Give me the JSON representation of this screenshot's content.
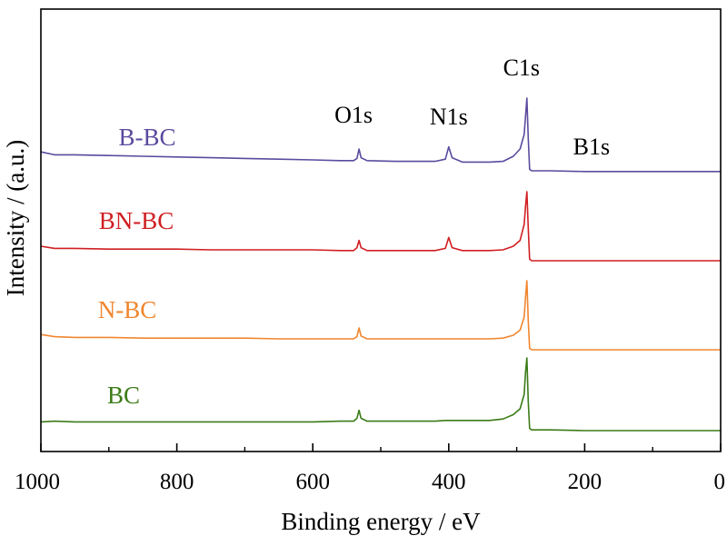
{
  "chart_data": {
    "type": "line",
    "xlabel": "Binding energy / eV",
    "ylabel": "Intensity / (a.u.)",
    "xlim": [
      1000,
      0
    ],
    "x_reversed": true,
    "x_ticks": [
      1000,
      800,
      600,
      400,
      200,
      0
    ],
    "x_minor_ticks": [
      900,
      700,
      500,
      300,
      100
    ],
    "y_ticks_shown": false,
    "grid": false,
    "legend": "labels placed next to each curve on the left",
    "peak_labels": [
      {
        "text": "O1s",
        "x": 532
      },
      {
        "text": "N1s",
        "x": 400
      },
      {
        "text": "C1s",
        "x": 285
      },
      {
        "text": "B1s",
        "x": 190
      }
    ],
    "series": [
      {
        "name": "B-BC",
        "color": "#5b4a9e",
        "offset": 3,
        "x": [
          1000,
          980,
          950,
          900,
          850,
          800,
          750,
          700,
          650,
          600,
          560,
          540,
          535,
          532,
          529,
          520,
          480,
          440,
          420,
          405,
          400,
          395,
          380,
          340,
          320,
          305,
          295,
          289,
          287,
          285,
          283,
          281,
          278,
          250,
          200,
          150,
          100,
          50,
          0
        ],
        "y": [
          0.26,
          0.22,
          0.22,
          0.21,
          0.2,
          0.19,
          0.18,
          0.17,
          0.16,
          0.15,
          0.14,
          0.14,
          0.17,
          0.3,
          0.18,
          0.14,
          0.13,
          0.13,
          0.13,
          0.16,
          0.33,
          0.18,
          0.12,
          0.12,
          0.13,
          0.2,
          0.3,
          0.5,
          0.75,
          1.0,
          0.45,
          0.02,
          0.0,
          0.0,
          -0.01,
          -0.01,
          -0.01,
          -0.01,
          -0.01
        ]
      },
      {
        "name": "BN-BC",
        "color": "#d01f22",
        "offset": 2,
        "x": [
          1000,
          980,
          950,
          900,
          850,
          800,
          750,
          700,
          650,
          600,
          560,
          540,
          535,
          532,
          529,
          520,
          480,
          440,
          420,
          405,
          400,
          395,
          380,
          340,
          320,
          305,
          295,
          289,
          287,
          285,
          283,
          281,
          278,
          250,
          200,
          150,
          100,
          50,
          0
        ],
        "y": [
          0.2,
          0.17,
          0.17,
          0.16,
          0.16,
          0.16,
          0.15,
          0.15,
          0.15,
          0.15,
          0.14,
          0.14,
          0.18,
          0.28,
          0.18,
          0.14,
          0.14,
          0.14,
          0.14,
          0.17,
          0.32,
          0.18,
          0.14,
          0.14,
          0.15,
          0.2,
          0.28,
          0.5,
          0.75,
          0.95,
          0.45,
          0.02,
          0.0,
          0.0,
          0.0,
          0.0,
          0.0,
          0.0,
          0.0
        ]
      },
      {
        "name": "N-BC",
        "color": "#f0862f",
        "offset": 1,
        "x": [
          1000,
          980,
          950,
          900,
          850,
          800,
          750,
          700,
          650,
          600,
          560,
          540,
          535,
          532,
          529,
          520,
          480,
          440,
          420,
          405,
          400,
          395,
          380,
          340,
          320,
          305,
          295,
          289,
          287,
          285,
          283,
          281,
          278,
          250,
          200,
          150,
          100,
          50,
          0
        ],
        "y": [
          0.21,
          0.18,
          0.17,
          0.17,
          0.16,
          0.16,
          0.16,
          0.16,
          0.15,
          0.15,
          0.15,
          0.15,
          0.18,
          0.3,
          0.19,
          0.15,
          0.15,
          0.15,
          0.15,
          0.15,
          0.15,
          0.15,
          0.15,
          0.15,
          0.16,
          0.2,
          0.27,
          0.45,
          0.72,
          0.95,
          0.4,
          0.02,
          0.0,
          0.0,
          0.0,
          0.0,
          0.0,
          0.0,
          0.0
        ]
      },
      {
        "name": "BC",
        "color": "#3b7b17",
        "offset": 0,
        "x": [
          1000,
          980,
          950,
          900,
          850,
          800,
          750,
          700,
          650,
          600,
          560,
          540,
          535,
          532,
          529,
          520,
          480,
          440,
          420,
          405,
          400,
          395,
          380,
          340,
          320,
          305,
          295,
          289,
          287,
          285,
          283,
          281,
          278,
          250,
          200,
          150,
          100,
          50,
          0
        ],
        "y": [
          0.12,
          0.13,
          0.12,
          0.12,
          0.12,
          0.12,
          0.12,
          0.12,
          0.12,
          0.12,
          0.13,
          0.13,
          0.17,
          0.28,
          0.17,
          0.13,
          0.13,
          0.13,
          0.13,
          0.14,
          0.14,
          0.14,
          0.14,
          0.14,
          0.16,
          0.22,
          0.3,
          0.5,
          0.8,
          1.0,
          0.4,
          0.03,
          0.01,
          0.01,
          0.0,
          0.0,
          0.0,
          0.0,
          0.0
        ]
      }
    ]
  }
}
